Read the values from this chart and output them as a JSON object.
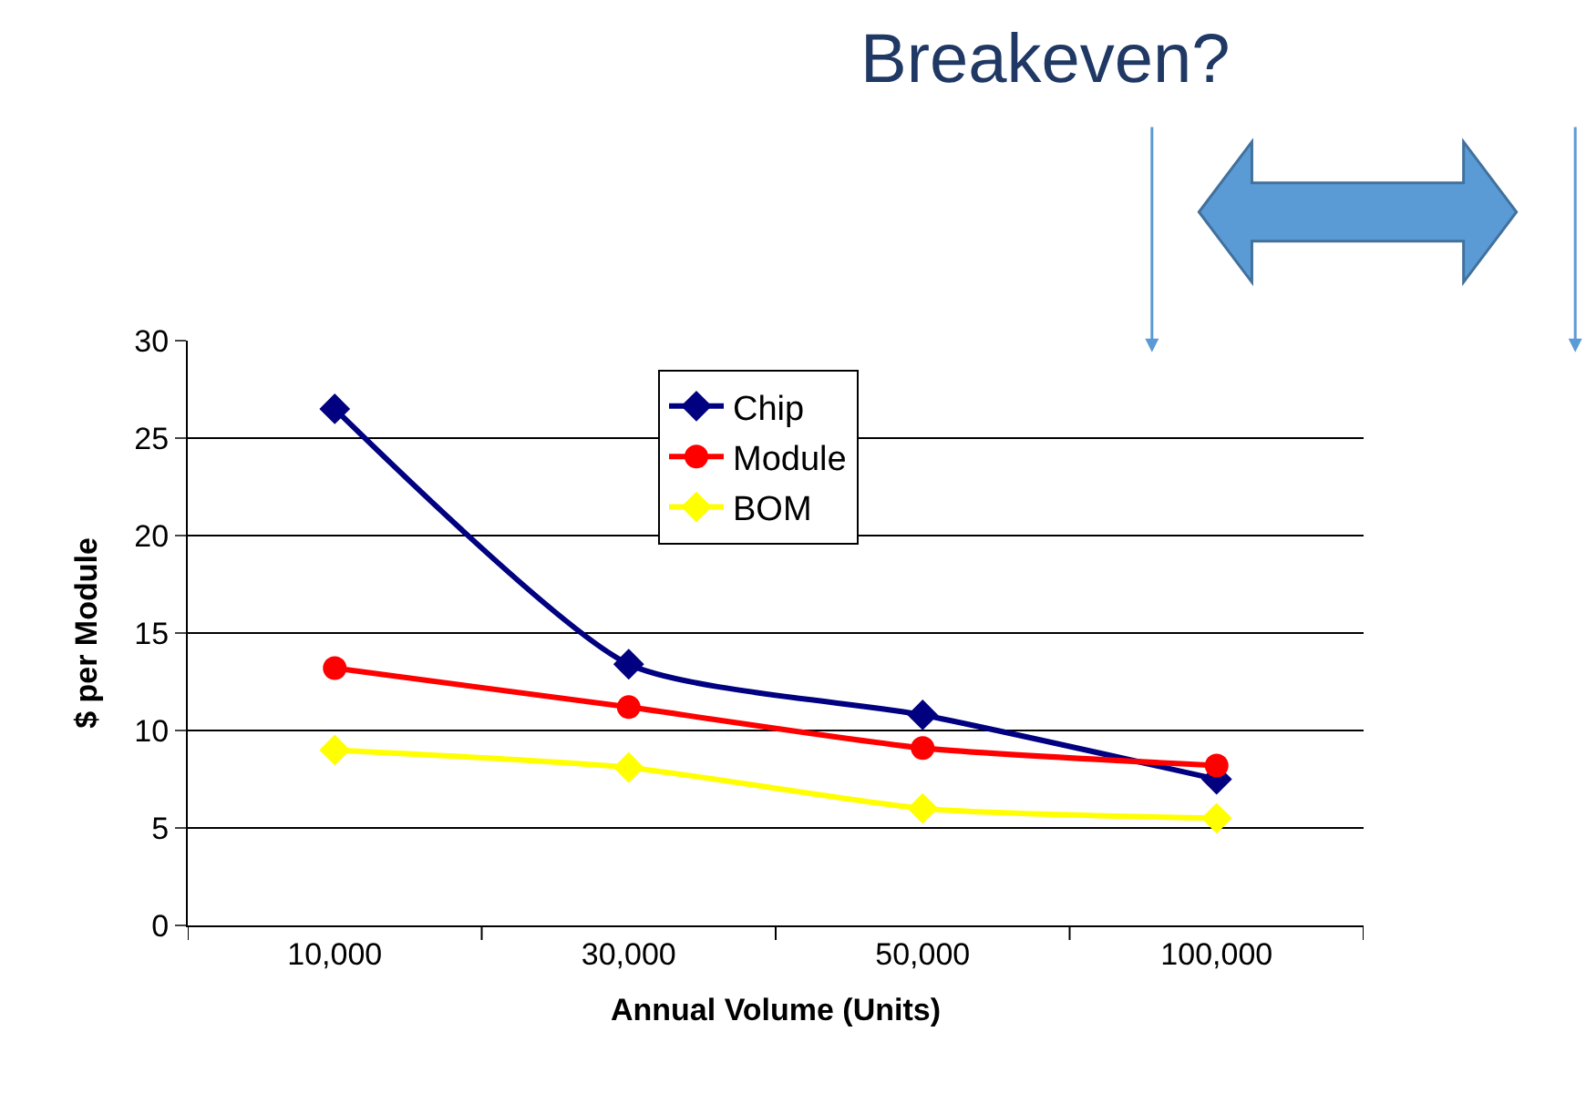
{
  "chart_data": {
    "type": "line",
    "xlabel": "Annual Volume (Units)",
    "ylabel": "$ per Module",
    "categories": [
      "10,000",
      "30,000",
      "50,000",
      "100,000"
    ],
    "series": [
      {
        "name": "Chip",
        "color": "#000080",
        "marker": "diamond",
        "values": [
          26.5,
          13.4,
          10.8,
          7.5
        ]
      },
      {
        "name": "Module",
        "color": "#ff0000",
        "marker": "circle",
        "values": [
          13.2,
          11.2,
          9.1,
          8.2
        ]
      },
      {
        "name": "BOM",
        "color": "#ffff00",
        "marker": "diamond",
        "values": [
          9.0,
          8.1,
          6.0,
          5.5
        ]
      }
    ],
    "ylim": [
      0,
      30
    ],
    "yticks": [
      0,
      5,
      10,
      15,
      20,
      25,
      30
    ],
    "grid": "y",
    "legend": "top",
    "line_style": "solid",
    "annotations": [
      "Breakeven?"
    ]
  }
}
